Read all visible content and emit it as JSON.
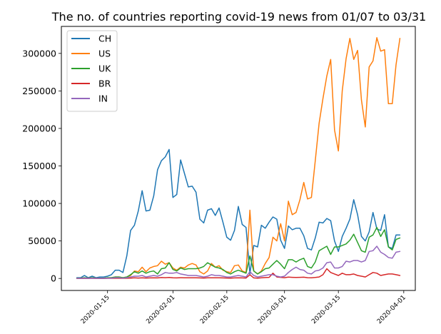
{
  "chart_data": {
    "type": "line",
    "title": "The no. of countries reporting covid-19 news from 01/07 to 03/31",
    "xlabel": "",
    "ylabel": "",
    "x_start": "2020-01-07",
    "x_range": [
      "2020-01-03",
      "2020-04-04"
    ],
    "ylim": [
      -16000,
      336000
    ],
    "grid": false,
    "legend_position": "upper-left",
    "x_ticks": [
      "2020-01-15",
      "2020-02-01",
      "2020-02-15",
      "2020-03-01",
      "2020-03-15",
      "2020-04-01"
    ],
    "y_ticks": [
      0,
      50000,
      100000,
      150000,
      200000,
      250000,
      300000
    ],
    "series": [
      {
        "name": "CH",
        "color": "#1f77b4",
        "values": [
          1000,
          1000,
          4000,
          1000,
          3000,
          1000,
          2000,
          2000,
          3000,
          5000,
          11000,
          11000,
          8000,
          30000,
          64000,
          71000,
          90000,
          117000,
          90000,
          91000,
          110000,
          145000,
          157000,
          162000,
          172000,
          108000,
          112000,
          158000,
          140000,
          122000,
          123000,
          115000,
          79000,
          74000,
          91000,
          93000,
          84000,
          94000,
          75000,
          55000,
          51000,
          64000,
          96000,
          72000,
          68000,
          6000,
          44000,
          42000,
          71000,
          67000,
          75000,
          82000,
          79000,
          51000,
          40000,
          70000,
          65000,
          67000,
          67000,
          57000,
          40000,
          38000,
          54000,
          75000,
          74000,
          80000,
          77000,
          50000,
          36000,
          56000,
          67000,
          79000,
          105000,
          85000,
          56000,
          50000,
          62000,
          88000,
          66000,
          64000,
          85000,
          42000,
          40000,
          58000,
          58000
        ]
      },
      {
        "name": "US",
        "color": "#ff7f0e",
        "values": [
          500,
          500,
          1000,
          500,
          1000,
          500,
          500,
          500,
          1000,
          1000,
          2000,
          2000,
          1000,
          2000,
          4000,
          10000,
          9000,
          15000,
          9000,
          14000,
          16000,
          17000,
          23000,
          19000,
          21000,
          14000,
          11000,
          15000,
          14000,
          18000,
          20000,
          18000,
          9000,
          6000,
          10000,
          20000,
          15000,
          17000,
          11000,
          9000,
          8000,
          17000,
          18000,
          10000,
          8000,
          91000,
          10000,
          6000,
          10000,
          20000,
          28000,
          55000,
          50000,
          73000,
          50000,
          103000,
          85000,
          88000,
          105000,
          128000,
          106000,
          108000,
          157000,
          207000,
          240000,
          270000,
          292000,
          198000,
          170000,
          250000,
          293000,
          320000,
          292000,
          304000,
          238000,
          202000,
          282000,
          290000,
          321000,
          303000,
          305000,
          233000,
          233000,
          285000,
          320000
        ]
      },
      {
        "name": "UK",
        "color": "#2ca02c",
        "values": [
          500,
          500,
          1000,
          500,
          1000,
          500,
          500,
          500,
          1000,
          1000,
          2000,
          2000,
          1000,
          2000,
          5000,
          9000,
          7000,
          10000,
          7000,
          9000,
          10000,
          6000,
          13000,
          14000,
          21000,
          12000,
          10000,
          14000,
          12000,
          13000,
          13000,
          13000,
          14000,
          16000,
          21000,
          18000,
          15000,
          14000,
          12000,
          8000,
          6000,
          9000,
          11000,
          9000,
          7000,
          30000,
          10000,
          6000,
          9000,
          13000,
          14000,
          19000,
          24000,
          19000,
          13000,
          25000,
          25000,
          22000,
          25000,
          27000,
          16000,
          14000,
          22000,
          37000,
          40000,
          43000,
          32000,
          42000,
          42000,
          44000,
          46000,
          51000,
          59000,
          48000,
          37000,
          35000,
          55000,
          58000,
          68000,
          56000,
          65000,
          42000,
          38000,
          52000,
          54000
        ]
      },
      {
        "name": "BR",
        "color": "#d62728",
        "values": [
          100,
          100,
          200,
          100,
          200,
          100,
          100,
          100,
          200,
          200,
          300,
          300,
          200,
          300,
          500,
          800,
          600,
          900,
          600,
          700,
          800,
          700,
          1200,
          1000,
          1300,
          800,
          700,
          1000,
          900,
          800,
          900,
          900,
          700,
          600,
          800,
          900,
          800,
          800,
          700,
          600,
          500,
          700,
          900,
          700,
          600,
          5000,
          700,
          500,
          800,
          1200,
          1500,
          7000,
          2000,
          1500,
          1000,
          1800,
          1500,
          1300,
          1500,
          1700,
          1000,
          900,
          1300,
          2000,
          5000,
          13000,
          8000,
          6000,
          4000,
          7000,
          5000,
          5000,
          6000,
          4000,
          3000,
          2000,
          5000,
          8000,
          7000,
          4000,
          5000,
          6000,
          6000,
          5000,
          4000
        ]
      },
      {
        "name": "IN",
        "color": "#9467bd",
        "values": [
          200,
          200,
          500,
          200,
          500,
          200,
          200,
          200,
          500,
          500,
          1000,
          1000,
          500,
          1000,
          2000,
          3000,
          3000,
          4000,
          2000,
          3000,
          4000,
          3000,
          5000,
          8000,
          7000,
          7000,
          8000,
          6000,
          5000,
          4000,
          4000,
          4000,
          3000,
          2000,
          3000,
          5000,
          4000,
          4000,
          3000,
          2000,
          2000,
          3000,
          4000,
          3000,
          2000,
          9000,
          4000,
          2000,
          3000,
          4000,
          5000,
          5000,
          3000,
          2000,
          3000,
          8000,
          12000,
          15000,
          12000,
          11000,
          7000,
          6000,
          10000,
          11000,
          14000,
          21000,
          22000,
          14000,
          14000,
          16000,
          23000,
          22000,
          24000,
          24000,
          22000,
          24000,
          36000,
          37000,
          43000,
          35000,
          32000,
          28000,
          27000,
          35000,
          36000
        ]
      }
    ]
  }
}
